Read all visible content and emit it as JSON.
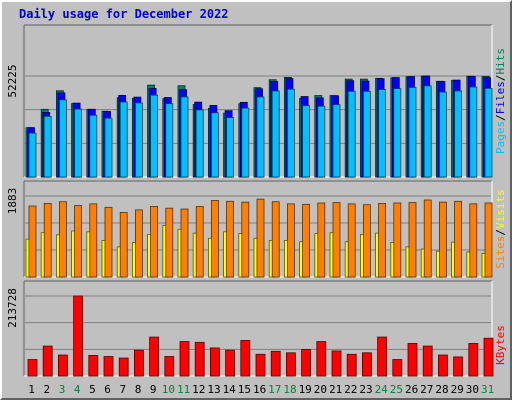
{
  "title": "Daily usage for December 2022",
  "colors": {
    "background": "#c0c0c0",
    "hits": "#00805c",
    "files": "#0000ff",
    "pages": "#00c0ff",
    "visits": "#ffff00",
    "sites": "#ff8000",
    "kbytes": "#ff0000",
    "title": "#0000cc",
    "weekend_label": "#008040"
  },
  "chart_data": {
    "type": "bar",
    "title": "Daily usage for December 2022",
    "categories": [
      "1",
      "2",
      "3",
      "4",
      "5",
      "6",
      "7",
      "8",
      "9",
      "10",
      "11",
      "12",
      "13",
      "14",
      "15",
      "16",
      "17",
      "18",
      "19",
      "20",
      "21",
      "22",
      "23",
      "24",
      "25",
      "26",
      "27",
      "28",
      "29",
      "30",
      "31"
    ],
    "weekend_days": [
      "3",
      "4",
      "10",
      "11",
      "17",
      "18",
      "24",
      "25",
      "31"
    ],
    "panels": [
      {
        "id": "hits_files_pages",
        "ymax_label": "52225",
        "ylim": [
          0,
          52225
        ],
        "legend": [
          "Pages",
          "Files",
          "Hits"
        ],
        "series": [
          {
            "name": "Hits",
            "values": [
              25500,
              35000,
              44600,
              38000,
              35000,
              34000,
              41000,
              40700,
              47500,
              40500,
              47200,
              37500,
              35500,
              33000,
              37900,
              46200,
              50300,
              51500,
              40700,
              42100,
              42100,
              50600,
              50600,
              51000,
              51300,
              51800,
              52225,
              49500,
              50000,
              52100,
              52000
            ]
          },
          {
            "name": "Files",
            "values": [
              25500,
              33400,
              43500,
              38200,
              35000,
              33900,
              42200,
              41300,
              45800,
              41100,
              45200,
              38700,
              37000,
              34300,
              38600,
              45600,
              49400,
              50900,
              41600,
              40900,
              42000,
              49800,
              49600,
              50800,
              51400,
              51900,
              52225,
              49400,
              50100,
              52000,
              51400
            ]
          },
          {
            "name": "Pages",
            "values": [
              22700,
              31300,
              39900,
              35100,
              31900,
              30400,
              38800,
              38300,
              42300,
              37900,
              41400,
              34700,
              33200,
              30700,
              35600,
              41400,
              44500,
              45400,
              36900,
              36600,
              37400,
              44300,
              44300,
              45200,
              45700,
              46300,
              47100,
              43900,
              44500,
              46500,
              45800
            ]
          }
        ]
      },
      {
        "id": "sites_visits",
        "ymax_label": "1883",
        "ylim": [
          0,
          1883
        ],
        "legend": [
          "Sites",
          "Visits"
        ],
        "series": [
          {
            "name": "Visits",
            "values": [
              880,
              1030,
              980,
              1070,
              1050,
              850,
              700,
              800,
              990,
              1200,
              1110,
              1020,
              900,
              1050,
              1010,
              900,
              850,
              850,
              820,
              1010,
              1030,
              820,
              990,
              1020,
              800,
              700,
              650,
              600,
              810,
              580,
              550
            ]
          },
          {
            "name": "Sites",
            "values": [
              1650,
              1710,
              1750,
              1660,
              1700,
              1620,
              1500,
              1560,
              1640,
              1600,
              1580,
              1640,
              1780,
              1760,
              1740,
              1810,
              1750,
              1700,
              1690,
              1720,
              1730,
              1700,
              1680,
              1710,
              1720,
              1730,
              1790,
              1740,
              1760,
              1700,
              1720
            ]
          }
        ]
      },
      {
        "id": "kbytes",
        "ymax_label": "213728",
        "ylim": [
          0,
          213728
        ],
        "legend": [
          "KBytes"
        ],
        "series": [
          {
            "name": "KBytes",
            "values": [
              44000,
              80000,
              56000,
              213728,
              55000,
              52000,
              48000,
              69000,
              104000,
              52000,
              92000,
              90000,
              75000,
              69000,
              95000,
              58000,
              66000,
              62000,
              71000,
              92000,
              67000,
              58000,
              62000,
              104000,
              44000,
              87000,
              80000,
              56000,
              51000,
              87000,
              101000
            ]
          }
        ]
      }
    ]
  }
}
